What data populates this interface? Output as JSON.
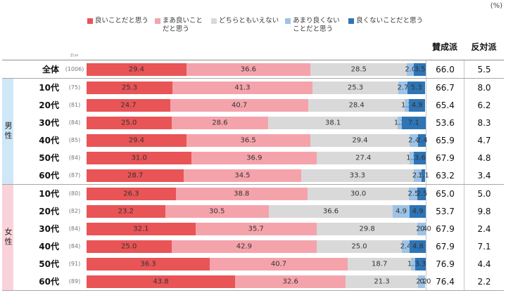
{
  "unit_label": "(%)",
  "n_label": "n=",
  "columns": {
    "agree": "賛成派",
    "oppose": "反対派"
  },
  "legend": [
    {
      "label": "良いことだと思う",
      "color": "#e95456"
    },
    {
      "label": "まあ良いことだと思う",
      "color": "#f5a3ab"
    },
    {
      "label": "どちらともいえない",
      "color": "#d9d9d9"
    },
    {
      "label": "あまり良くないことだと思う",
      "color": "#9dc3e6"
    },
    {
      "label": "良くないことだと思う",
      "color": "#2e75b6"
    }
  ],
  "groups": [
    {
      "label": "",
      "band_color": "transparent"
    },
    {
      "label": "男性",
      "band_color": "#cfe7f7"
    },
    {
      "label": "女性",
      "band_color": "#fad2db"
    }
  ],
  "chart_data": {
    "type": "bar",
    "stacked": true,
    "orientation": "horizontal",
    "unit": "%",
    "xlim": [
      0,
      100
    ],
    "legend_position": "top",
    "series": [
      "良いことだと思う",
      "まあ良いことだと思う",
      "どちらともいえない",
      "あまり良くないことだと思う",
      "良くないことだと思う"
    ],
    "series_colors": [
      "#e95456",
      "#f5a3ab",
      "#d9d9d9",
      "#9dc3e6",
      "#2e75b6"
    ],
    "agree_column_label": "賛成派",
    "oppose_column_label": "反対派",
    "rows": [
      {
        "group": "",
        "label": "全体",
        "n": "(1006)",
        "values": [
          29.4,
          36.6,
          28.5,
          2.0,
          3.5
        ],
        "agree": 66.0,
        "oppose": 5.5
      },
      {
        "group": "男性",
        "label": "10代",
        "n": "(75)",
        "values": [
          25.3,
          41.3,
          25.3,
          2.7,
          5.3
        ],
        "agree": 66.7,
        "oppose": 8.0
      },
      {
        "group": "男性",
        "label": "20代",
        "n": "(81)",
        "values": [
          24.7,
          40.7,
          28.4,
          1.2,
          4.9
        ],
        "agree": 65.4,
        "oppose": 6.2
      },
      {
        "group": "男性",
        "label": "30代",
        "n": "(84)",
        "values": [
          25.0,
          28.6,
          38.1,
          1.2,
          7.1
        ],
        "agree": 53.6,
        "oppose": 8.3
      },
      {
        "group": "男性",
        "label": "40代",
        "n": "(85)",
        "values": [
          29.4,
          36.5,
          29.4,
          2.4,
          2.4
        ],
        "agree": 65.9,
        "oppose": 4.7
      },
      {
        "group": "男性",
        "label": "50代",
        "n": "(84)",
        "values": [
          31.0,
          36.9,
          27.4,
          1.2,
          3.6
        ],
        "agree": 67.9,
        "oppose": 4.8
      },
      {
        "group": "男性",
        "label": "60代",
        "n": "(87)",
        "values": [
          28.7,
          34.5,
          33.3,
          2.3,
          1.1
        ],
        "agree": 63.2,
        "oppose": 3.4
      },
      {
        "group": "女性",
        "label": "10代",
        "n": "(80)",
        "values": [
          26.3,
          38.8,
          30.0,
          2.5,
          2.5
        ],
        "agree": 65.0,
        "oppose": 5.0
      },
      {
        "group": "女性",
        "label": "20代",
        "n": "(82)",
        "values": [
          23.2,
          30.5,
          36.6,
          4.9,
          4.9
        ],
        "agree": 53.7,
        "oppose": 9.8
      },
      {
        "group": "女性",
        "label": "30代",
        "n": "(84)",
        "values": [
          32.1,
          35.7,
          29.8,
          2.4,
          0.0
        ],
        "agree": 67.9,
        "oppose": 2.4
      },
      {
        "group": "女性",
        "label": "40代",
        "n": "(84)",
        "values": [
          25.0,
          42.9,
          25.0,
          2.4,
          4.8
        ],
        "agree": 67.9,
        "oppose": 7.1
      },
      {
        "group": "女性",
        "label": "50代",
        "n": "(91)",
        "values": [
          36.3,
          40.7,
          18.7,
          1.1,
          3.3
        ],
        "agree": 76.9,
        "oppose": 4.4
      },
      {
        "group": "女性",
        "label": "60代",
        "n": "(89)",
        "values": [
          43.8,
          32.6,
          21.3,
          2.2,
          0.0
        ],
        "agree": 76.4,
        "oppose": 2.2
      }
    ]
  }
}
